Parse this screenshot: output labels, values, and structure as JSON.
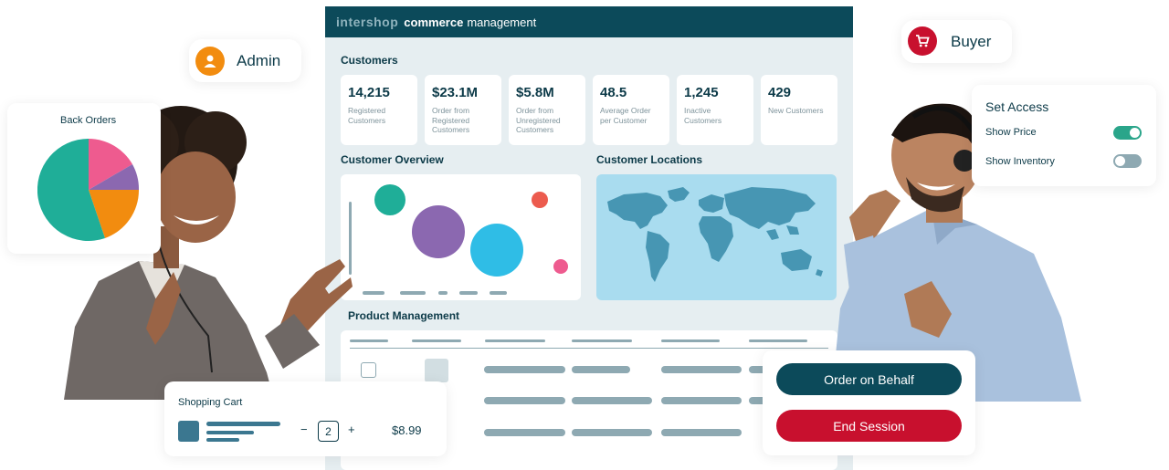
{
  "dashboard": {
    "brand": "intershop",
    "brand_bold": "commerce",
    "brand_rest": "management",
    "customers_title": "Customers",
    "stats": [
      {
        "value": "14,215",
        "label": "Registered Customers"
      },
      {
        "value": "$23.1M",
        "label": "Order from Registered Customers"
      },
      {
        "value": "$5.8M",
        "label": "Order from Unregistered Customers"
      },
      {
        "value": "48.5",
        "label": "Average Order per Customer"
      },
      {
        "value": "1,245",
        "label": "Inactive Customers"
      },
      {
        "value": "429",
        "label": "New Customers"
      }
    ],
    "overview_title": "Customer Overview",
    "locations_title": "Customer Locations",
    "product_title": "Product Management"
  },
  "admin": {
    "label": "Admin",
    "icon": "user-icon",
    "color": "#f28c0f"
  },
  "buyer": {
    "label": "Buyer",
    "icon": "cart-icon",
    "color": "#c8102e"
  },
  "back_orders": {
    "title": "Back Orders"
  },
  "set_access": {
    "title": "Set Access",
    "show_price": "Show Price",
    "show_price_on": true,
    "show_inventory": "Show Inventory",
    "show_inventory_on": false
  },
  "cart": {
    "title": "Shopping Cart",
    "qty": "2",
    "minus": "−",
    "plus": "+",
    "price": "$8.99"
  },
  "actions": {
    "order_on_behalf": "Order on Behalf",
    "end_session": "End Session"
  },
  "colors": {
    "teal_dark": "#0c4a5a",
    "green_toggle": "#2aa58a",
    "red": "#c8102e",
    "orange": "#f28c0f"
  }
}
